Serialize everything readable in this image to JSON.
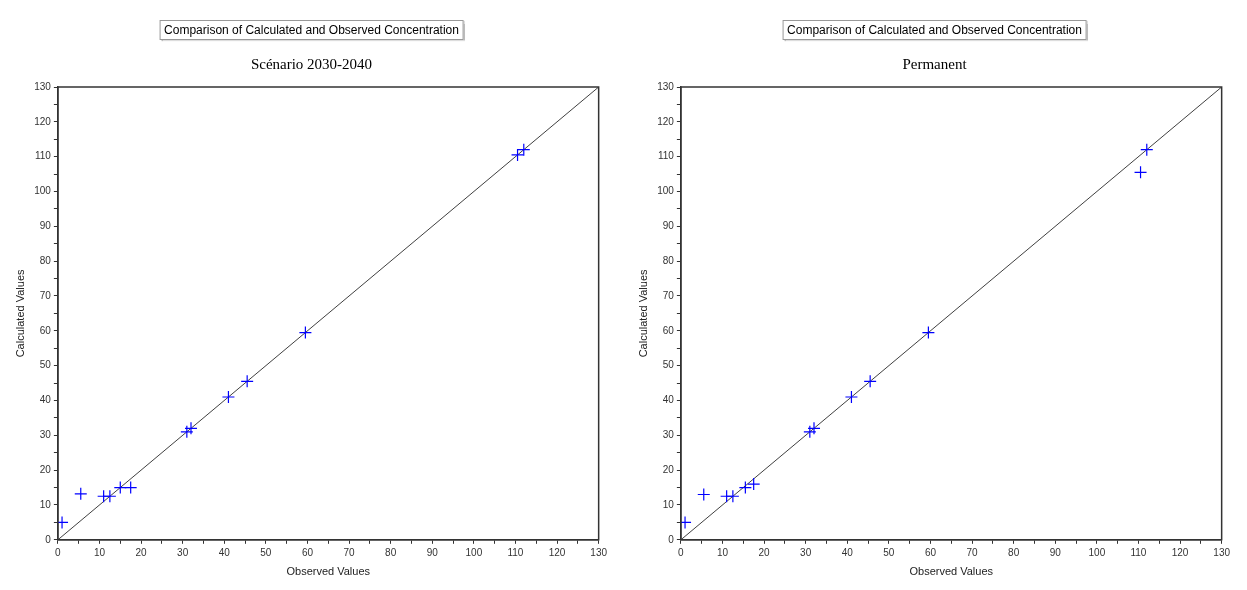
{
  "chart_data": [
    {
      "type": "scatter",
      "title": "Comparison of Calculated and Observed Concentration",
      "subtitle": "Scénario 2030-2040",
      "xlabel": "Observed Values",
      "ylabel": "Calculated Values",
      "xlim": [
        0,
        130
      ],
      "ylim": [
        0,
        130
      ],
      "xticks": [
        0,
        {
          "value": 5,
          "label": null
        },
        10,
        {
          "value": 15,
          "label": null
        },
        20,
        {
          "value": 25,
          "label": null
        },
        30,
        {
          "value": 35,
          "label": null
        },
        40,
        {
          "value": 45,
          "label": null
        },
        50,
        {
          "value": 55,
          "label": null
        },
        60,
        {
          "value": 65,
          "label": null
        },
        70,
        {
          "value": 75,
          "label": null
        },
        80,
        {
          "value": 85,
          "label": null
        },
        90,
        {
          "value": 95,
          "label": null
        },
        100,
        {
          "value": 105,
          "label": null
        },
        110,
        {
          "value": 115,
          "label": null
        },
        120,
        {
          "value": 125,
          "label": null
        },
        130
      ],
      "yticks": [
        0,
        {
          "value": 5,
          "label": null
        },
        10,
        {
          "value": 15,
          "label": null
        },
        20,
        {
          "value": 25,
          "label": null
        },
        30,
        {
          "value": 35,
          "label": null
        },
        40,
        {
          "value": 45,
          "label": null
        },
        50,
        {
          "value": 55,
          "label": null
        },
        60,
        {
          "value": 65,
          "label": null
        },
        70,
        {
          "value": 75,
          "label": null
        },
        80,
        {
          "value": 85,
          "label": null
        },
        90,
        {
          "value": 95,
          "label": null
        },
        100,
        {
          "value": 105,
          "label": null
        },
        110,
        {
          "value": 115,
          "label": null
        },
        120,
        {
          "value": 125,
          "label": null
        },
        130
      ],
      "grid": false,
      "legend": false,
      "marker": "cross",
      "series": [
        {
          "type": "scatter",
          "color": "#0000ff",
          "x": [
            1,
            5.5,
            11,
            12.5,
            15,
            17.5,
            31,
            32,
            41,
            45.5,
            59.5,
            110.5,
            112
          ],
          "values": [
            5,
            13.2,
            12.5,
            12.5,
            15,
            15,
            31,
            32,
            41,
            45.5,
            59.5,
            110.5,
            112
          ]
        },
        {
          "type": "line",
          "color": "#404040",
          "marker": "none",
          "line_style": "solid",
          "x": [
            0,
            130
          ],
          "values": [
            0,
            130
          ]
        }
      ]
    },
    {
      "type": "scatter",
      "title": "Comparison of Calculated and Observed Concentration",
      "subtitle": "Permanent",
      "xlabel": "Observed Values",
      "ylabel": "Calculated Values",
      "xlim": [
        0,
        130
      ],
      "ylim": [
        0,
        130
      ],
      "xticks": [
        0,
        {
          "value": 5,
          "label": null
        },
        10,
        {
          "value": 15,
          "label": null
        },
        20,
        {
          "value": 25,
          "label": null
        },
        30,
        {
          "value": 35,
          "label": null
        },
        40,
        {
          "value": 45,
          "label": null
        },
        50,
        {
          "value": 55,
          "label": null
        },
        60,
        {
          "value": 65,
          "label": null
        },
        70,
        {
          "value": 75,
          "label": null
        },
        80,
        {
          "value": 85,
          "label": null
        },
        90,
        {
          "value": 95,
          "label": null
        },
        100,
        {
          "value": 105,
          "label": null
        },
        110,
        {
          "value": 115,
          "label": null
        },
        120,
        {
          "value": 125,
          "label": null
        },
        130
      ],
      "yticks": [
        0,
        {
          "value": 5,
          "label": null
        },
        10,
        {
          "value": 15,
          "label": null
        },
        20,
        {
          "value": 25,
          "label": null
        },
        30,
        {
          "value": 35,
          "label": null
        },
        40,
        {
          "value": 45,
          "label": null
        },
        50,
        {
          "value": 55,
          "label": null
        },
        60,
        {
          "value": 65,
          "label": null
        },
        70,
        {
          "value": 75,
          "label": null
        },
        80,
        {
          "value": 85,
          "label": null
        },
        90,
        {
          "value": 95,
          "label": null
        },
        100,
        {
          "value": 105,
          "label": null
        },
        110,
        {
          "value": 115,
          "label": null
        },
        120,
        {
          "value": 125,
          "label": null
        },
        130
      ],
      "grid": false,
      "legend": false,
      "marker": "cross",
      "series": [
        {
          "type": "scatter",
          "color": "#0000ff",
          "x": [
            1,
            5.5,
            11,
            12.5,
            15.5,
            17.5,
            31,
            32,
            41,
            45.5,
            59.5,
            110.5,
            112
          ],
          "values": [
            5,
            13,
            12.5,
            12.5,
            15,
            16,
            31,
            32,
            41,
            45.5,
            59.5,
            105.5,
            112
          ]
        },
        {
          "type": "line",
          "color": "#404040",
          "marker": "none",
          "line_style": "solid",
          "x": [
            0,
            130
          ],
          "values": [
            0,
            130
          ]
        }
      ]
    }
  ]
}
